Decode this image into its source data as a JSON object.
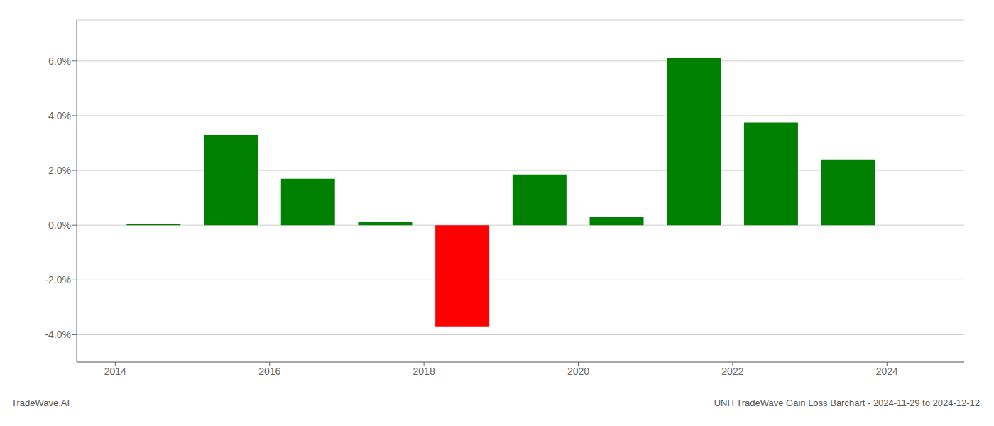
{
  "chart_data": {
    "type": "bar",
    "x": [
      2014.5,
      2015.5,
      2016.5,
      2017.5,
      2018.5,
      2019.5,
      2020.5,
      2021.5,
      2022.5,
      2023.5
    ],
    "values": [
      0.0005,
      0.033,
      0.017,
      0.0013,
      -0.037,
      0.0185,
      0.003,
      0.061,
      0.0375,
      0.024
    ],
    "colors": [
      "#008000",
      "#008000",
      "#008000",
      "#008000",
      "#ff0000",
      "#008000",
      "#008000",
      "#008000",
      "#008000",
      "#008000"
    ],
    "xlim": [
      2013.5,
      2025.0
    ],
    "xticks": [
      2014,
      2016,
      2018,
      2020,
      2022,
      2024
    ],
    "ylim": [
      -0.05,
      0.075
    ],
    "yticks": [
      {
        "value": -0.04,
        "label": "-4.0%"
      },
      {
        "value": -0.02,
        "label": "-2.0%"
      },
      {
        "value": 0.0,
        "label": "0.0%"
      },
      {
        "value": 0.02,
        "label": "2.0%"
      },
      {
        "value": 0.04,
        "label": "4.0%"
      },
      {
        "value": 0.06,
        "label": "6.0%"
      }
    ],
    "grid": true,
    "annotations": [
      "TradeWave.AI",
      "UNH TradeWave Gain Loss Barchart - 2024-11-29 to 2024-12-12"
    ]
  }
}
